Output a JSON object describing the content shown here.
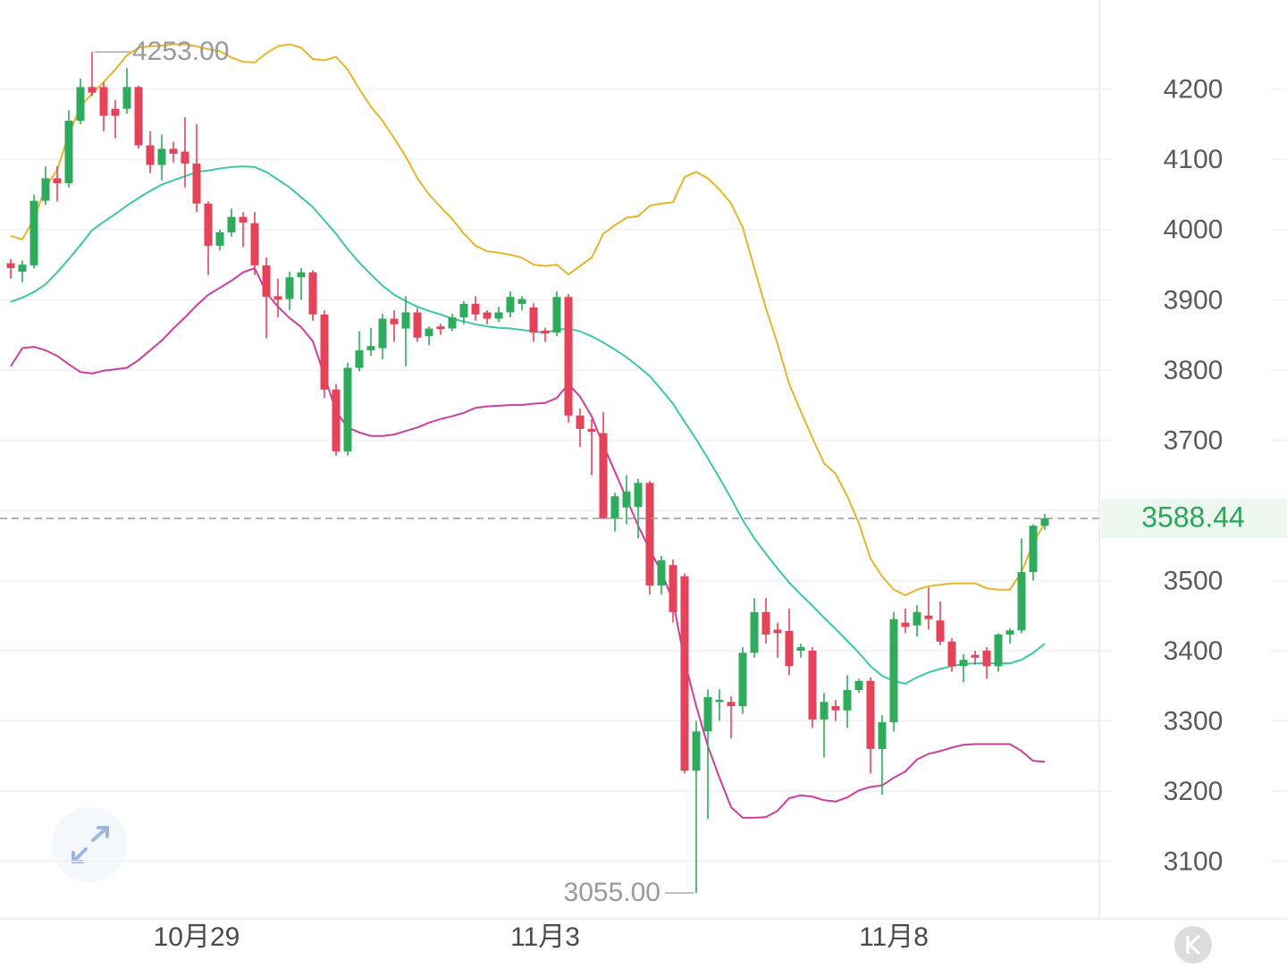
{
  "chart_data": {
    "type": "candlestick",
    "categories": [
      null,
      null,
      null,
      null,
      null,
      null,
      null,
      null,
      null,
      null,
      null,
      null,
      null,
      null,
      null,
      null,
      "10月29",
      null,
      null,
      null,
      null,
      null,
      null,
      null,
      null,
      null,
      null,
      null,
      null,
      null,
      null,
      null,
      null,
      null,
      null,
      null,
      null,
      null,
      null,
      null,
      null,
      null,
      null,
      null,
      null,
      null,
      "11月3",
      null,
      null,
      null,
      null,
      null,
      null,
      null,
      null,
      null,
      null,
      null,
      null,
      null,
      null,
      null,
      null,
      null,
      null,
      null,
      null,
      null,
      null,
      null,
      null,
      null,
      null,
      null,
      null,
      null,
      "11月8",
      null,
      null,
      null,
      null,
      null,
      null,
      null,
      null,
      null,
      null,
      null,
      null,
      null
    ],
    "open": [
      3952,
      3940,
      3949,
      4041,
      4073,
      4066,
      4155,
      4203,
      4203,
      4172,
      4172,
      4203,
      4120,
      4092,
      4115,
      4111,
      4094,
      4037,
      3977,
      3996,
      4018,
      4009,
      3949,
      3905,
      3901,
      3932,
      3939,
      3879,
      3772,
      3684,
      3803,
      3828,
      3831,
      3873,
      3859,
      3882,
      3848,
      3862,
      3859,
      3875,
      3894,
      3882,
      3873,
      3882,
      3894,
      3889,
      3856,
      3853,
      3904,
      3735,
      3716,
      3710,
      3588,
      3604,
      3605,
      3639,
      3493,
      3522,
      3506,
      3229,
      3285,
      3327,
      3327,
      3321,
      3397,
      3455,
      3430,
      3428,
      3400,
      3400,
      3302,
      3321,
      3315,
      3344,
      3357,
      3260,
      3298,
      3440,
      3436,
      3450,
      3443,
      3413,
      3378,
      3394,
      3400,
      3378,
      3423,
      3429,
      3512,
      3578
    ],
    "high": [
      3958,
      3956,
      4050,
      4090,
      4090,
      4170,
      4215,
      4253,
      4210,
      4185,
      4230,
      4205,
      4140,
      4135,
      4125,
      4160,
      4150,
      4040,
      4000,
      4030,
      4025,
      4025,
      3960,
      3930,
      3940,
      3945,
      3942,
      3885,
      3780,
      3810,
      3855,
      3860,
      3880,
      3885,
      3905,
      3888,
      3862,
      3866,
      3880,
      3898,
      3905,
      3885,
      3890,
      3912,
      3905,
      3895,
      3860,
      3912,
      3908,
      3745,
      3730,
      3740,
      3625,
      3650,
      3645,
      3642,
      3535,
      3530,
      3510,
      3300,
      3345,
      3345,
      3335,
      3405,
      3475,
      3475,
      3440,
      3460,
      3410,
      3405,
      3340,
      3330,
      3365,
      3360,
      3362,
      3308,
      3455,
      3460,
      3465,
      3490,
      3470,
      3418,
      3395,
      3400,
      3405,
      3425,
      3432,
      3560,
      3580,
      3595
    ],
    "low": [
      3930,
      3925,
      3945,
      4035,
      4040,
      4060,
      4150,
      4190,
      4140,
      4130,
      4165,
      4115,
      4080,
      4070,
      4095,
      4060,
      4025,
      3935,
      3970,
      3990,
      3975,
      3935,
      3845,
      3875,
      3885,
      3900,
      3870,
      3760,
      3678,
      3678,
      3798,
      3820,
      3815,
      3840,
      3805,
      3840,
      3835,
      3850,
      3855,
      3865,
      3870,
      3865,
      3868,
      3875,
      3885,
      3840,
      3840,
      3848,
      3725,
      3690,
      3650,
      3588,
      3570,
      3580,
      3560,
      3480,
      3480,
      3440,
      3225,
      3055,
      3160,
      3300,
      3275,
      3310,
      3390,
      3410,
      3390,
      3365,
      3390,
      3290,
      3248,
      3300,
      3290,
      3340,
      3225,
      3195,
      3285,
      3425,
      3420,
      3430,
      3408,
      3370,
      3355,
      3380,
      3360,
      3370,
      3410,
      3425,
      3500,
      3572
    ],
    "close": [
      3945,
      3950,
      4041,
      4073,
      4066,
      4155,
      4203,
      4195,
      4162,
      4162,
      4203,
      4120,
      4092,
      4115,
      4108,
      4094,
      4037,
      3977,
      3996,
      4018,
      4010,
      3949,
      3904,
      3900,
      3932,
      3939,
      3879,
      3772,
      3684,
      3803,
      3828,
      3834,
      3873,
      3865,
      3882,
      3846,
      3859,
      3858,
      3875,
      3894,
      3879,
      3873,
      3882,
      3904,
      3901,
      3853,
      3852,
      3904,
      3735,
      3716,
      3712,
      3588,
      3620,
      3627,
      3639,
      3493,
      3529,
      3455,
      3229,
      3285,
      3334,
      3330,
      3321,
      3397,
      3455,
      3423,
      3425,
      3378,
      3405,
      3302,
      3327,
      3315,
      3344,
      3357,
      3260,
      3298,
      3445,
      3434,
      3455,
      3445,
      3413,
      3378,
      3387,
      3390,
      3378,
      3423,
      3429,
      3512,
      3578,
      3588.44
    ],
    "up_color": "#2eab5c",
    "down_color": "#e5435a",
    "max_label": "4253.00",
    "min_label": "3055.00",
    "bands": [
      {
        "color": "#e7b52a",
        "values": [
          3991,
          3986,
          4015,
          4060,
          4085,
          4136,
          4175,
          4194,
          4210,
          4228,
          4248,
          4259,
          4261,
          4262,
          4264,
          4264,
          4261,
          4257,
          4254,
          4245,
          4239,
          4238,
          4251,
          4261,
          4264,
          4259,
          4243,
          4241,
          4246,
          4228,
          4200,
          4175,
          4155,
          4130,
          4104,
          4073,
          4050,
          4032,
          4015,
          3994,
          3977,
          3969,
          3967,
          3964,
          3960,
          3950,
          3948,
          3950,
          3936,
          3948,
          3960,
          3994,
          4006,
          4017,
          4019,
          4034,
          4037,
          4039,
          4075,
          4082,
          4073,
          4057,
          4037,
          4003,
          3945,
          3888,
          3837,
          3780,
          3741,
          3703,
          3667,
          3652,
          3620,
          3582,
          3531,
          3506,
          3487,
          3479,
          3487,
          3492,
          3494,
          3496,
          3496,
          3496,
          3489,
          3487,
          3487,
          3512,
          3553,
          3582
        ]
      },
      {
        "color": "#3cc7a6",
        "values": [
          3897,
          3903,
          3911,
          3922,
          3939,
          3958,
          3978,
          3999,
          4011,
          4022,
          4034,
          4045,
          4055,
          4064,
          4070,
          4076,
          4082,
          4084,
          4087,
          4089,
          4090,
          4089,
          4082,
          4071,
          4060,
          4046,
          4032,
          4013,
          3994,
          3972,
          3953,
          3936,
          3920,
          3907,
          3898,
          3890,
          3884,
          3879,
          3873,
          3869,
          3865,
          3862,
          3860,
          3859,
          3857,
          3855,
          3853,
          3857,
          3859,
          3855,
          3848,
          3839,
          3829,
          3818,
          3805,
          3791,
          3772,
          3752,
          3726,
          3701,
          3674,
          3646,
          3617,
          3586,
          3560,
          3538,
          3517,
          3497,
          3480,
          3464,
          3447,
          3431,
          3414,
          3397,
          3378,
          3364,
          3357,
          3353,
          3362,
          3369,
          3374,
          3378,
          3381,
          3382,
          3382,
          3382,
          3382,
          3387,
          3397,
          3410
        ]
      },
      {
        "color": "#cc3e9e",
        "values": [
          3805,
          3831,
          3833,
          3828,
          3820,
          3808,
          3797,
          3795,
          3799,
          3801,
          3803,
          3814,
          3828,
          3842,
          3859,
          3875,
          3892,
          3907,
          3917,
          3927,
          3939,
          3945,
          3910,
          3890,
          3874,
          3861,
          3841,
          3792,
          3741,
          3718,
          3711,
          3706,
          3706,
          3708,
          3713,
          3718,
          3725,
          3730,
          3734,
          3739,
          3746,
          3748,
          3749,
          3750,
          3750,
          3752,
          3753,
          3760,
          3780,
          3762,
          3734,
          3693,
          3655,
          3617,
          3578,
          3544,
          3512,
          3471,
          3385,
          3321,
          3264,
          3219,
          3177,
          3162,
          3162,
          3163,
          3172,
          3190,
          3194,
          3192,
          3187,
          3185,
          3191,
          3201,
          3206,
          3208,
          3219,
          3228,
          3245,
          3253,
          3257,
          3262,
          3266,
          3267,
          3267,
          3267,
          3267,
          3257,
          3243,
          3242
        ]
      }
    ],
    "ylim": [
      3018,
      4327
    ],
    "yticks": [
      3100,
      3200,
      3300,
      3400,
      3500,
      3600,
      3700,
      3800,
      3900,
      4000,
      4100,
      4200
    ],
    "last_price_color": "#2ea55a",
    "grid": true
  }
}
